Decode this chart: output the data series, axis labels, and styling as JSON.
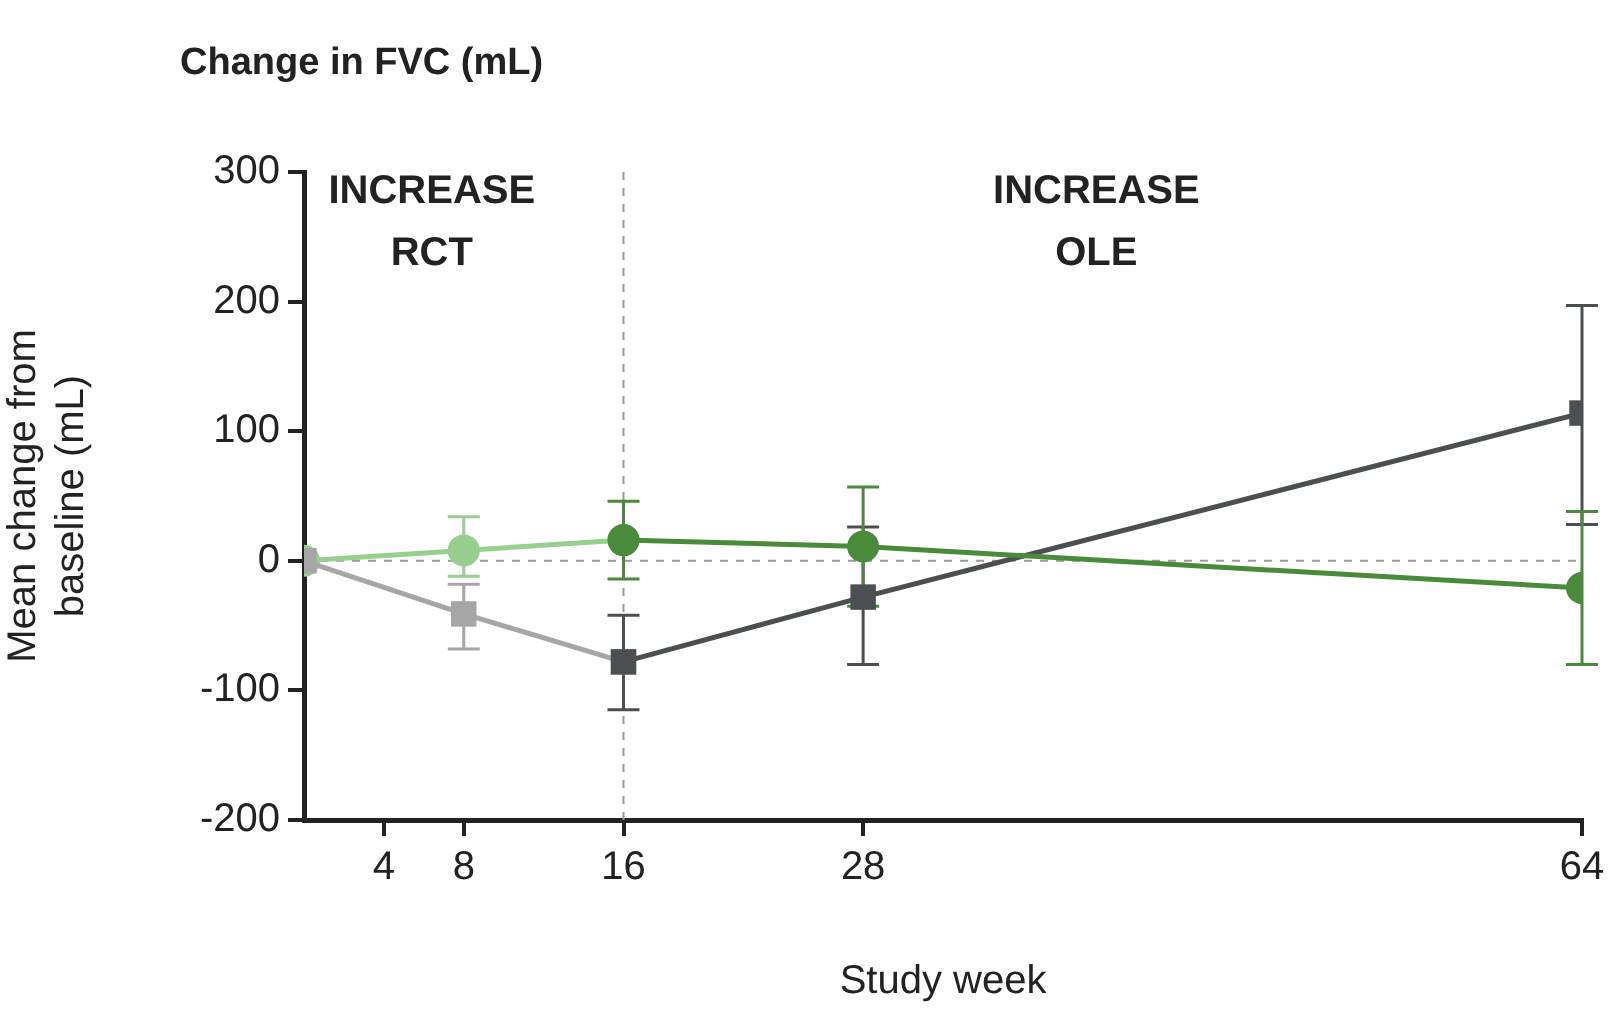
{
  "chart_data": {
    "type": "line",
    "title": "Change in FVC (mL)",
    "xlabel": "Study week",
    "ylabel": "Mean change from baseline (mL)",
    "xlim": [
      0,
      64
    ],
    "xticks": [
      4,
      8,
      16,
      28,
      64
    ],
    "ylim": [
      -200,
      300
    ],
    "yticks": [
      -200,
      -100,
      0,
      100,
      200,
      300
    ],
    "grid": false,
    "legend": false,
    "series": [
      {
        "color": "#97d08e",
        "marker": "circle",
        "x": [
          0,
          8,
          16
        ],
        "values": [
          0,
          8,
          16
        ],
        "errors": [
          null,
          [
            -12,
            34
          ],
          null
        ]
      },
      {
        "color": "#a6a6a6",
        "marker": "square",
        "x": [
          0,
          8,
          16
        ],
        "values": [
          0,
          -41,
          -78
        ],
        "errors": [
          null,
          [
            -68,
            -18
          ],
          null
        ]
      },
      {
        "color": "#4b4f52",
        "marker": "square",
        "x": [
          16,
          28,
          64
        ],
        "values": [
          -78,
          -28,
          114
        ],
        "errors": [
          [
            -115,
            -42
          ],
          [
            -80,
            26
          ],
          [
            28,
            197
          ]
        ]
      },
      {
        "color": "#4a8a3b",
        "marker": "circle",
        "x": [
          16,
          28,
          64
        ],
        "values": [
          16,
          11,
          -21
        ],
        "errors": [
          [
            -14,
            46
          ],
          [
            -35,
            57
          ],
          [
            -80,
            38
          ]
        ]
      }
    ],
    "ref_lines": [
      {
        "axis": "y",
        "value": 0,
        "color": "#9a9a9a",
        "line_style": "dashed"
      },
      {
        "axis": "x",
        "value": 16,
        "color": "#9a9a9a",
        "line_style": "dashed"
      }
    ],
    "annotations": [
      "INCREASE\nRCT",
      "INCREASE\nOLE"
    ]
  }
}
